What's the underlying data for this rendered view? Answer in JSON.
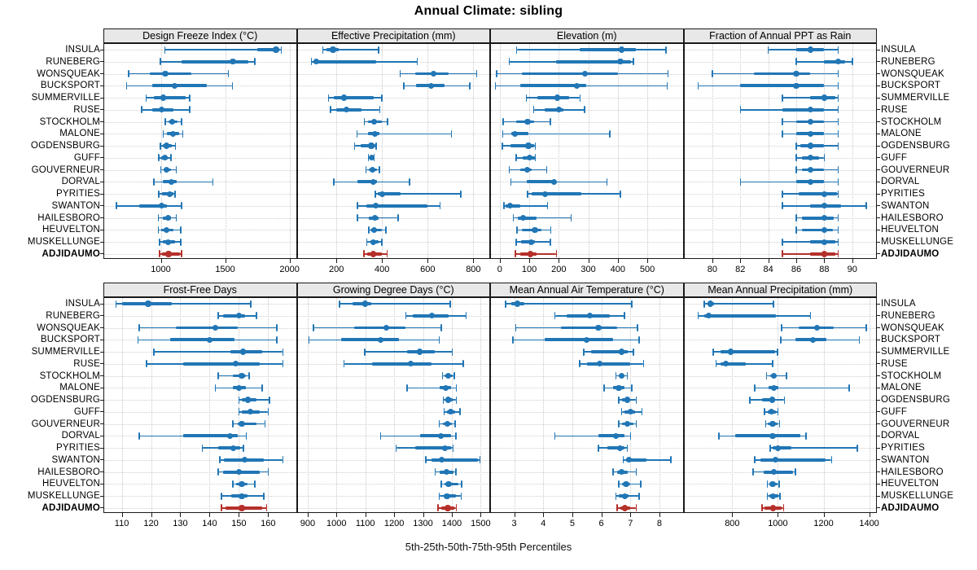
{
  "title": "Annual Climate: sibling",
  "caption": "5th-25th-50th-75th-95th Percentiles",
  "highlight_site": "ADJIDAUMO",
  "colors": {
    "series": "#2176b5",
    "highlight": "#b5302a",
    "strip_bg": "#e8e8e8",
    "grid": "#c9c9c9",
    "border": "#1a1a1a"
  },
  "sites": [
    "INSULA",
    "RUNEBERG",
    "WONSQUEAK",
    "BUCKSPORT",
    "SUMMERVILLE",
    "RUSE",
    "STOCKHOLM",
    "MALONE",
    "OGDENSBURG",
    "GUFF",
    "GOUVERNEUR",
    "DORVAL",
    "PYRITIES",
    "SWANTON",
    "HAILESBORO",
    "HEUVELTON",
    "MUSKELLUNGE",
    "ADJIDAUMO"
  ],
  "chart_data": {
    "type": "dotplot",
    "subtype": "percentile-interval",
    "percentiles": [
      "5th",
      "25th",
      "50th",
      "75th",
      "95th"
    ],
    "title": "Annual Climate: sibling",
    "xlabel": "5th-25th-50th-75th-95th Percentiles",
    "grid": true,
    "legend": "none",
    "layout": "2 rows x 4 columns, site names on left and right",
    "panels": [
      {
        "title": "Design Freeze Index (°C)",
        "xlim": [
          560,
          2050
        ],
        "ticks": [
          1000,
          1500,
          2000
        ],
        "series": [
          [
            1030,
            1750,
            1895,
            1920,
            1935
          ],
          [
            995,
            1160,
            1560,
            1680,
            1730
          ],
          [
            750,
            915,
            1035,
            1240,
            1525
          ],
          [
            735,
            933,
            1105,
            1360,
            1555
          ],
          [
            885,
            945,
            1020,
            1190,
            1225
          ],
          [
            850,
            935,
            1005,
            1100,
            1225
          ],
          [
            1035,
            1060,
            1090,
            1130,
            1160
          ],
          [
            1020,
            1045,
            1095,
            1140,
            1170
          ],
          [
            995,
            1015,
            1045,
            1085,
            1115
          ],
          [
            985,
            1005,
            1030,
            1055,
            1080
          ],
          [
            1000,
            1020,
            1045,
            1080,
            1120
          ],
          [
            945,
            1015,
            1080,
            1120,
            1405
          ],
          [
            985,
            1010,
            1070,
            1100,
            1110
          ],
          [
            655,
            830,
            1005,
            1045,
            1160
          ],
          [
            980,
            1015,
            1055,
            1080,
            1120
          ],
          [
            980,
            1005,
            1045,
            1100,
            1155
          ],
          [
            990,
            1015,
            1055,
            1110,
            1155
          ],
          [
            990,
            1010,
            1060,
            1150,
            1160
          ]
        ]
      },
      {
        "title": "Effective Precipitation (mm)",
        "xlim": [
          30,
          870
        ],
        "ticks": [
          200,
          400,
          600,
          800
        ],
        "series": [
          [
            140,
            155,
            185,
            210,
            385
          ],
          [
            90,
            100,
            112,
            375,
            555
          ],
          [
            480,
            545,
            625,
            690,
            815
          ],
          [
            495,
            550,
            615,
            675,
            785
          ],
          [
            165,
            190,
            233,
            363,
            400
          ],
          [
            175,
            200,
            245,
            310,
            390
          ],
          [
            323,
            340,
            365,
            400,
            425
          ],
          [
            290,
            340,
            370,
            390,
            705
          ],
          [
            280,
            307,
            353,
            369,
            375
          ],
          [
            340,
            348,
            354,
            360,
            365
          ],
          [
            330,
            342,
            358,
            377,
            388
          ],
          [
            188,
            293,
            362,
            377,
            520
          ],
          [
            370,
            383,
            400,
            480,
            745
          ],
          [
            292,
            330,
            373,
            600,
            655
          ],
          [
            292,
            342,
            369,
            386,
            470
          ],
          [
            342,
            351,
            365,
            400,
            417
          ],
          [
            333,
            348,
            362,
            386,
            400
          ],
          [
            320,
            336,
            362,
            400,
            423
          ]
        ]
      },
      {
        "title": "Elevation (m)",
        "xlim": [
          -30,
          620
        ],
        "ticks": [
          0,
          100,
          200,
          300,
          400,
          500
        ],
        "series": [
          [
            57,
            270,
            413,
            462,
            563
          ],
          [
            32,
            192,
            409,
            444,
            453
          ],
          [
            -10,
            75,
            288,
            400,
            570
          ],
          [
            -15,
            70,
            262,
            293,
            568
          ],
          [
            90,
            126,
            195,
            235,
            272
          ],
          [
            115,
            153,
            201,
            217,
            288
          ],
          [
            12,
            55,
            94,
            115,
            171
          ],
          [
            10,
            39,
            52,
            97,
            373
          ],
          [
            8,
            35,
            97,
            115,
            121
          ],
          [
            55,
            79,
            100,
            119,
            121
          ],
          [
            32,
            70,
            93,
            109,
            159
          ],
          [
            37,
            91,
            183,
            191,
            364
          ],
          [
            94,
            109,
            153,
            275,
            409
          ],
          [
            14,
            21,
            35,
            70,
            162
          ],
          [
            46,
            61,
            79,
            124,
            242
          ],
          [
            59,
            75,
            119,
            142,
            173
          ],
          [
            55,
            73,
            106,
            118,
            171
          ],
          [
            53,
            70,
            103,
            124,
            192
          ]
        ]
      },
      {
        "title": "Fraction of Annual PPT as Rain",
        "xlim": [
          78,
          91.7
        ],
        "ticks": [
          80,
          82,
          84,
          86,
          88,
          90
        ],
        "series": [
          [
            84,
            86,
            87,
            88,
            89
          ],
          [
            86,
            88,
            89,
            89.5,
            90
          ],
          [
            80,
            83,
            86,
            87,
            89
          ],
          [
            79,
            82,
            86,
            88,
            89
          ],
          [
            85,
            87,
            88,
            88.8,
            89
          ],
          [
            82,
            85,
            87,
            88,
            89
          ],
          [
            85,
            86,
            87,
            88,
            89
          ],
          [
            85,
            86,
            87,
            88,
            89
          ],
          [
            86,
            86.3,
            87,
            88,
            89
          ],
          [
            86,
            86.4,
            87,
            87.6,
            88
          ],
          [
            86,
            86.4,
            87,
            88,
            89
          ],
          [
            82,
            86,
            87,
            88,
            89
          ],
          [
            85,
            86.2,
            88,
            88.9,
            89
          ],
          [
            85,
            87,
            88,
            89.2,
            91
          ],
          [
            86,
            86.4,
            88,
            88.7,
            89
          ],
          [
            86,
            86.4,
            88,
            88.6,
            89
          ],
          [
            85,
            87,
            88,
            88.8,
            89
          ],
          [
            85,
            87,
            88,
            88.8,
            89
          ]
        ]
      },
      {
        "title": "Frost-Free Days",
        "xlim": [
          104,
          169.5
        ],
        "ticks": [
          110,
          120,
          130,
          140,
          150,
          160
        ],
        "series": [
          [
            108,
            110,
            119,
            127,
            154
          ],
          [
            143,
            144.5,
            150,
            152,
            156
          ],
          [
            116,
            128.5,
            142,
            149.5,
            163
          ],
          [
            115.5,
            126.5,
            140,
            148.5,
            163
          ],
          [
            121,
            147,
            151.5,
            158,
            165
          ],
          [
            118.5,
            131,
            149,
            157,
            165
          ],
          [
            143,
            148,
            151,
            152.5,
            153.5
          ],
          [
            142,
            148,
            150,
            152.5,
            158
          ],
          [
            150,
            151,
            153,
            156,
            160.5
          ],
          [
            150,
            151,
            154,
            157,
            160
          ],
          [
            148,
            149.5,
            151,
            156,
            159
          ],
          [
            116,
            131,
            147,
            149.5,
            152.5
          ],
          [
            137.5,
            143,
            148,
            150.5,
            151.5
          ],
          [
            143.5,
            145,
            152,
            158.5,
            165
          ],
          [
            143,
            144.5,
            150,
            157,
            160
          ],
          [
            148,
            149,
            151,
            153,
            155.5
          ],
          [
            144,
            147.5,
            151,
            153,
            158.5
          ],
          [
            144,
            145.5,
            151,
            158,
            159.5
          ]
        ]
      },
      {
        "title": "Growing Degree Days (°C)",
        "xlim": [
          865,
          1530
        ],
        "ticks": [
          900,
          1000,
          1100,
          1200,
          1300,
          1400,
          1500
        ],
        "series": [
          [
            1010,
            1055,
            1100,
            1120,
            1395
          ],
          [
            1240,
            1265,
            1330,
            1390,
            1450
          ],
          [
            920,
            1060,
            1173,
            1240,
            1364
          ],
          [
            905,
            1017,
            1152,
            1217,
            1356
          ],
          [
            1098,
            1245,
            1288,
            1340,
            1402
          ],
          [
            1026,
            1124,
            1257,
            1329,
            1439
          ],
          [
            1368,
            1376,
            1388,
            1403,
            1408
          ],
          [
            1245,
            1358,
            1380,
            1397,
            1415
          ],
          [
            1370,
            1378,
            1387,
            1403,
            1415
          ],
          [
            1373,
            1384,
            1395,
            1412,
            1428
          ],
          [
            1357,
            1369,
            1385,
            1401,
            1411
          ],
          [
            1153,
            1289,
            1362,
            1397,
            1414
          ],
          [
            1207,
            1273,
            1376,
            1398,
            1404
          ],
          [
            1310,
            1329,
            1364,
            1490,
            1498
          ],
          [
            1342,
            1359,
            1381,
            1406,
            1414
          ],
          [
            1364,
            1376,
            1389,
            1423,
            1434
          ],
          [
            1357,
            1371,
            1383,
            1414,
            1432
          ],
          [
            1352,
            1364,
            1386,
            1410,
            1415
          ]
        ]
      },
      {
        "title": "Mean Annual Air Temperature (°C)",
        "xlim": [
          2.2,
          8.8
        ],
        "ticks": [
          3,
          4,
          5,
          6,
          7,
          8
        ],
        "series": [
          [
            2.7,
            2.9,
            3.1,
            3.35,
            7.05
          ],
          [
            4.4,
            4.8,
            5.6,
            6.3,
            6.8
          ],
          [
            3.05,
            4.6,
            5.9,
            6.55,
            7.25
          ],
          [
            2.95,
            4.05,
            5.5,
            6.4,
            7.3
          ],
          [
            5.4,
            5.65,
            6.7,
            6.9,
            7.1
          ],
          [
            5.25,
            5.5,
            5.95,
            7.0,
            7.45
          ],
          [
            6.5,
            6.6,
            6.7,
            6.8,
            6.9
          ],
          [
            6.1,
            6.4,
            6.6,
            6.8,
            7.05
          ],
          [
            6.6,
            6.7,
            6.9,
            7.0,
            7.2
          ],
          [
            6.7,
            6.8,
            7.0,
            7.15,
            7.4
          ],
          [
            6.6,
            6.7,
            6.9,
            7.1,
            7.2
          ],
          [
            4.4,
            5.9,
            6.5,
            6.8,
            7.0
          ],
          [
            5.9,
            6.2,
            6.65,
            6.8,
            6.9
          ],
          [
            6.75,
            6.85,
            6.95,
            7.55,
            8.4
          ],
          [
            6.4,
            6.55,
            6.7,
            6.9,
            7.2
          ],
          [
            6.6,
            6.7,
            6.85,
            7.0,
            7.35
          ],
          [
            6.5,
            6.6,
            6.8,
            6.95,
            7.3
          ],
          [
            6.55,
            6.65,
            6.8,
            7.0,
            7.2
          ]
        ]
      },
      {
        "title": "Mean Annual Precipitation (mm)",
        "xlim": [
          590,
          1430
        ],
        "ticks": [
          800,
          1000,
          1200,
          1400
        ],
        "series": [
          [
            678,
            690,
            705,
            720,
            980
          ],
          [
            650,
            676,
            697,
            990,
            1143
          ],
          [
            1016,
            1090,
            1170,
            1244,
            1388
          ],
          [
            1013,
            1078,
            1155,
            1214,
            1356
          ],
          [
            717,
            747,
            792,
            989,
            998
          ],
          [
            729,
            747,
            773,
            859,
            977
          ],
          [
            951,
            966,
            981,
            995,
            1037
          ],
          [
            898,
            960,
            983,
            1001,
            1312
          ],
          [
            877,
            930,
            974,
            989,
            1028
          ],
          [
            942,
            954,
            972,
            993,
            1001
          ],
          [
            946,
            957,
            977,
            998,
            1007
          ],
          [
            741,
            812,
            977,
            1098,
            1123
          ],
          [
            966,
            977,
            1001,
            1060,
            1348
          ],
          [
            898,
            924,
            989,
            1208,
            1235
          ],
          [
            891,
            936,
            981,
            1065,
            1076
          ],
          [
            954,
            962,
            977,
            998,
            1005
          ],
          [
            954,
            962,
            980,
            1001,
            1009
          ],
          [
            930,
            942,
            980,
            1016,
            1025
          ]
        ]
      }
    ]
  }
}
